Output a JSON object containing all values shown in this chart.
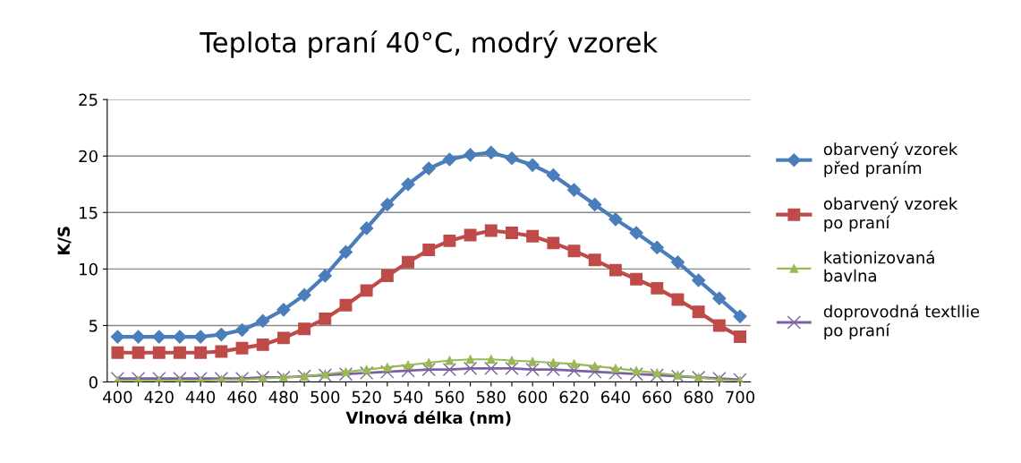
{
  "chart_data": {
    "type": "line",
    "title": "Teplota praní 40°C, modrý vzorek",
    "xlabel": "Vlnová délka (nm)",
    "ylabel": "K/S",
    "categories": [
      "400",
      null,
      "420",
      null,
      "440",
      null,
      "460",
      null,
      "480",
      null,
      "500",
      null,
      "520",
      null,
      "540",
      null,
      "560",
      null,
      "580",
      null,
      "600",
      null,
      "620",
      null,
      "640",
      null,
      "660",
      null,
      "680",
      null,
      "700"
    ],
    "ylim": [
      0,
      25
    ],
    "yticks": [
      0,
      5,
      10,
      15,
      20,
      25
    ],
    "grid": "y",
    "legend": "right",
    "series": [
      {
        "name": "obarvený vzorek před praním",
        "color": "#4a7ebb",
        "marker": "diamond",
        "values": [
          4.0,
          4.0,
          4.0,
          4.0,
          4.0,
          4.2,
          4.6,
          5.4,
          6.4,
          7.7,
          9.4,
          11.5,
          13.6,
          15.7,
          17.5,
          18.9,
          19.7,
          20.1,
          20.3,
          19.8,
          19.2,
          18.3,
          17.0,
          15.7,
          14.4,
          13.2,
          11.9,
          10.6,
          9.0,
          7.4,
          5.8
        ]
      },
      {
        "name": "obarvený vzorek po praní",
        "color": "#be4b48",
        "marker": "square",
        "values": [
          2.6,
          2.6,
          2.6,
          2.6,
          2.6,
          2.7,
          3.0,
          3.3,
          3.9,
          4.7,
          5.6,
          6.8,
          8.1,
          9.4,
          10.6,
          11.7,
          12.5,
          13.0,
          13.4,
          13.2,
          12.9,
          12.3,
          11.6,
          10.8,
          9.9,
          9.1,
          8.3,
          7.3,
          6.2,
          5.0,
          4.0
        ]
      },
      {
        "name": "kationizovaná bavlna",
        "color": "#98b954",
        "marker": "triangle",
        "values": [
          0.1,
          0.1,
          0.1,
          0.1,
          0.1,
          0.2,
          0.2,
          0.3,
          0.4,
          0.5,
          0.7,
          0.9,
          1.1,
          1.3,
          1.5,
          1.7,
          1.9,
          2.0,
          2.0,
          1.9,
          1.8,
          1.7,
          1.6,
          1.4,
          1.2,
          1.0,
          0.8,
          0.6,
          0.4,
          0.2,
          0.1
        ]
      },
      {
        "name": "doprovodná textllie po praní",
        "color": "#7d60a0",
        "marker": "cross",
        "values": [
          0.3,
          0.3,
          0.3,
          0.3,
          0.3,
          0.3,
          0.3,
          0.4,
          0.4,
          0.5,
          0.6,
          0.7,
          0.8,
          0.9,
          1.0,
          1.1,
          1.1,
          1.2,
          1.2,
          1.2,
          1.1,
          1.1,
          1.0,
          0.9,
          0.8,
          0.7,
          0.6,
          0.5,
          0.4,
          0.3,
          0.2
        ]
      }
    ]
  }
}
